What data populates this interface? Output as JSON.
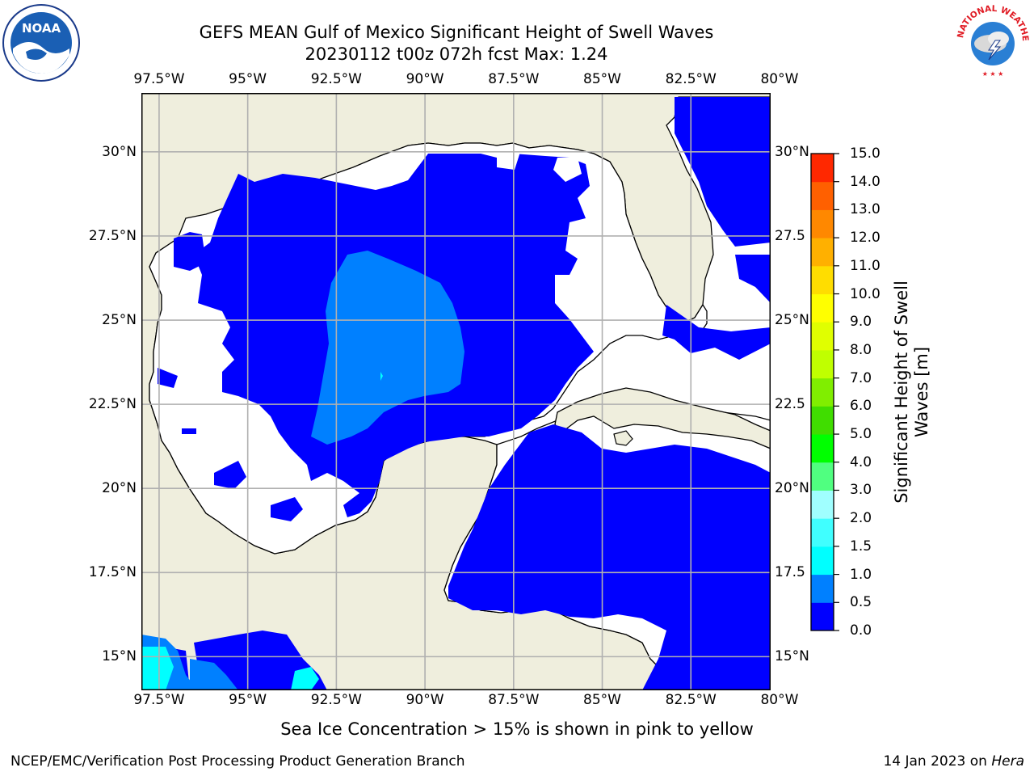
{
  "title": {
    "line1": "GEFS MEAN Gulf of Mexico Significant Height of Swell Waves",
    "line2": "20230112 t00z 072h fcst   Max: 1.24"
  },
  "map": {
    "lon_range": [
      -98,
      -80.25
    ],
    "lat_range": [
      14,
      31.75
    ],
    "lon_ticks": [
      "97.5°W",
      "95°W",
      "92.5°W",
      "90°W",
      "87.5°W",
      "85°W",
      "82.5°W",
      "80°W"
    ],
    "lon_tick_values": [
      -97.5,
      -95,
      -92.5,
      -90,
      -87.5,
      -85,
      -82.5,
      -80
    ],
    "lat_ticks": [
      "30°N",
      "27.5°N",
      "25°N",
      "22.5°N",
      "20°N",
      "17.5°N",
      "15°N"
    ],
    "lat_tick_values": [
      30,
      27.5,
      25,
      22.5,
      20,
      17.5,
      15
    ],
    "right_lat_ticks": [
      "30°N",
      "27.5",
      "25°N",
      "22.5",
      "20°N",
      "17.5",
      "15°N"
    ],
    "grid": true,
    "colors": {
      "land": "#efeedd",
      "sea": "#ffffff",
      "grid": "#b0b0b0"
    }
  },
  "colorbar": {
    "label": "Significant Height of Swell Waves [m]",
    "label_line1": "Significant Height of Swell",
    "label_line2": "Waves [m]",
    "ticks": [
      "0.0",
      "0.5",
      "1.0",
      "1.5",
      "2.0",
      "3.0",
      "4.0",
      "5.0",
      "6.0",
      "7.0",
      "8.0",
      "9.0",
      "10.0",
      "11.0",
      "12.0",
      "13.0",
      "14.0",
      "15.0"
    ],
    "colors": [
      "#0000ff",
      "#0080ff",
      "#00ffff",
      "#40ffff",
      "#a0ffff",
      "#50ff80",
      "#00ff00",
      "#40dd00",
      "#80ee00",
      "#c0ff00",
      "#e0ff00",
      "#ffff00",
      "#ffdd00",
      "#ffb000",
      "#ff8800",
      "#ff6000",
      "#ff2800",
      "#ff0000"
    ]
  },
  "note": "Sea Ice Concentration > 15% is shown in pink to yellow",
  "footer": {
    "left": "NCEP/EMC/Verification Post Processing Product Generation Branch",
    "right_date": "14 Jan 2023 on ",
    "right_host": "Hera"
  },
  "logos": {
    "noaa": "NOAA",
    "nws": "NATIONAL WEATHER SERVICE"
  }
}
